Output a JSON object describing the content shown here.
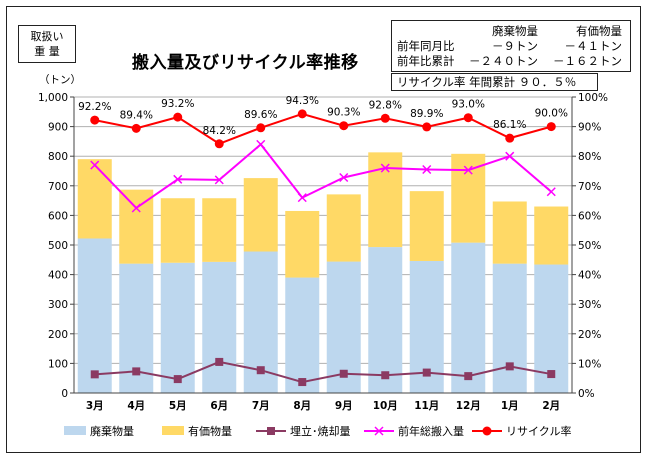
{
  "unit_box": {
    "line1": "取扱い",
    "line2": "重 量"
  },
  "title": "搬入量及びリサイクル率推移",
  "summary": {
    "header": [
      "",
      "廃棄物量",
      "有価物量"
    ],
    "rows": [
      [
        "前年同月比",
        "－９トン",
        "－４１トン"
      ],
      [
        "前年比累計",
        "－２４０トン",
        "－１６２トン"
      ]
    ]
  },
  "rate_box": "リサイクル率  年間累計  ９０．５％",
  "colors": {
    "waste": "#bdd7ee",
    "valuable": "#ffd966",
    "landfill": "#8b3a62",
    "prev_total": "#ff00ff",
    "recycle_rate": "#ff0000"
  },
  "chart_data": {
    "type": "bar",
    "categories": [
      "3月",
      "4月",
      "5月",
      "6月",
      "7月",
      "8月",
      "9月",
      "10月",
      "11月",
      "12月",
      "1月",
      "2月"
    ],
    "left_axis": {
      "label": "（トン）",
      "ylim": [
        0,
        1000
      ],
      "ticks": [
        "0",
        "100",
        "200",
        "300",
        "400",
        "500",
        "600",
        "700",
        "800",
        "900",
        "1,000"
      ]
    },
    "right_axis": {
      "ylim": [
        0,
        100
      ],
      "ticks": [
        "0%",
        "10%",
        "20%",
        "30%",
        "40%",
        "50%",
        "60%",
        "70%",
        "80%",
        "90%",
        "100%"
      ]
    },
    "stacked_bars": [
      {
        "name": "廃棄物量",
        "values": [
          522,
          437,
          440,
          443,
          478,
          390,
          444,
          493,
          446,
          508,
          437,
          434
        ]
      },
      {
        "name": "有価物量",
        "values": [
          268,
          250,
          218,
          215,
          248,
          225,
          227,
          320,
          236,
          300,
          210,
          196
        ]
      }
    ],
    "lines": [
      {
        "name": "埋立･焼却量",
        "axis": "left",
        "marker": "square",
        "values": [
          63,
          73,
          47,
          105,
          77,
          37,
          65,
          60,
          69,
          57,
          90,
          64
        ]
      },
      {
        "name": "前年総搬入量",
        "axis": "left",
        "marker": "x",
        "values": [
          770,
          625,
          722,
          720,
          840,
          660,
          728,
          760,
          755,
          753,
          800,
          680
        ]
      },
      {
        "name": "リサイクル率",
        "axis": "right",
        "marker": "circle",
        "values": [
          92.2,
          89.4,
          93.2,
          84.2,
          89.6,
          94.3,
          90.3,
          92.8,
          89.9,
          93.0,
          86.1,
          90.0
        ],
        "labels": [
          "92.2%",
          "89.4%",
          "93.2%",
          "84.2%",
          "89.6%",
          "94.3%",
          "90.3%",
          "92.8%",
          "89.9%",
          "93.0%",
          "86.1%",
          "90.0%"
        ]
      }
    ],
    "grid": true,
    "legend_position": "bottom"
  }
}
